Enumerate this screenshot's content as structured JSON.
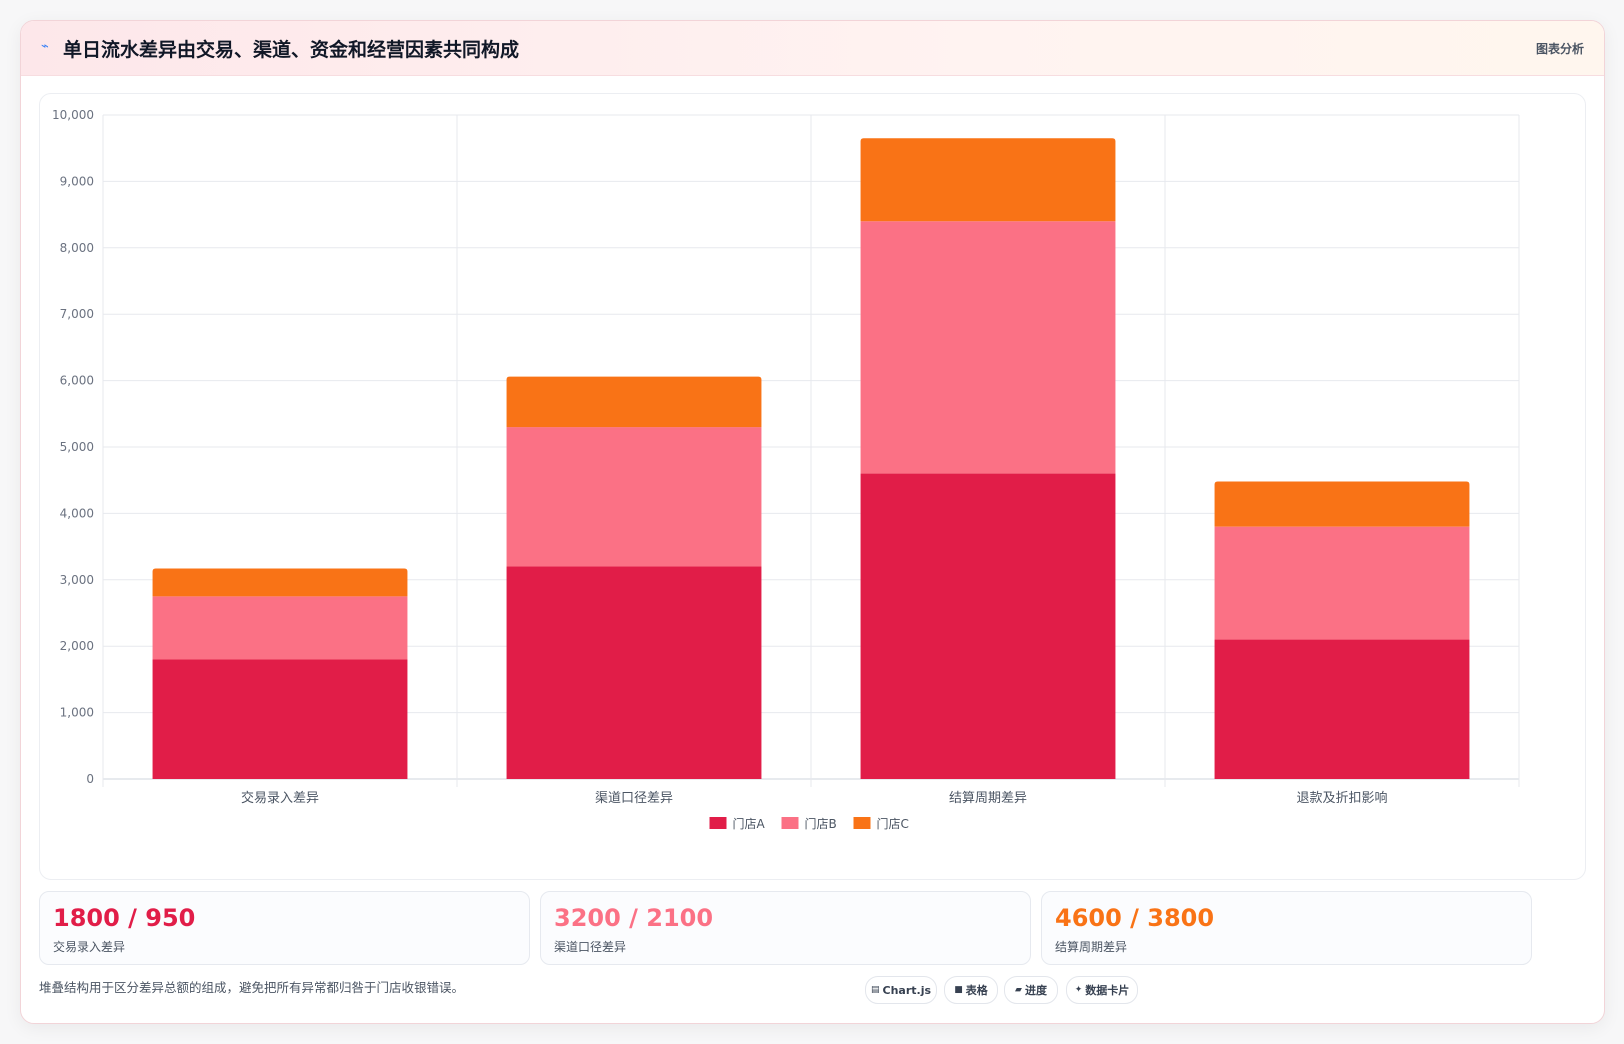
{
  "header": {
    "icon": "lightning-icon",
    "title": "单日流水差异由交易、渠道、资金和经营因素共同构成",
    "action_label": "图表分析"
  },
  "chart_data": {
    "type": "bar",
    "stacked": true,
    "categories": [
      "交易录入差异",
      "渠道口径差异",
      "结算周期差异",
      "退款及折扣影响"
    ],
    "series": [
      {
        "name": "门店A",
        "color": "#e11d48",
        "values": [
          1800,
          3200,
          4600,
          2100
        ]
      },
      {
        "name": "门店B",
        "color": "#fb7185",
        "values": [
          950,
          2100,
          3800,
          1700
        ]
      },
      {
        "name": "门店C",
        "color": "#f97316",
        "values": [
          420,
          760,
          1250,
          680
        ]
      }
    ],
    "ylim": [
      0,
      10000
    ],
    "yticks": [
      0,
      1000,
      2000,
      3000,
      4000,
      5000,
      6000,
      7000,
      8000,
      9000,
      10000
    ],
    "grid": true,
    "legend": "bottom"
  },
  "stats": [
    {
      "value": "1800 / 950",
      "label": "交易录入差异",
      "color": "#e11d48"
    },
    {
      "value": "3200 / 2100",
      "label": "渠道口径差异",
      "color": "#fb7185"
    },
    {
      "value": "4600 / 3800",
      "label": "结算周期差异",
      "color": "#f97316"
    }
  ],
  "footer": {
    "note": "堆叠结构用于区分差异总额的组成，避免把所有异常都归咎于门店收银错误。",
    "pills": [
      {
        "icon": "chart-icon",
        "glyph": "▤",
        "label": "Chart.js"
      },
      {
        "icon": "table-icon",
        "glyph": "■",
        "label": "表格"
      },
      {
        "icon": "progress-icon",
        "glyph": "▰",
        "label": "进度"
      },
      {
        "icon": "sparkle-icon",
        "glyph": "✦",
        "label": "数据卡片"
      }
    ]
  }
}
